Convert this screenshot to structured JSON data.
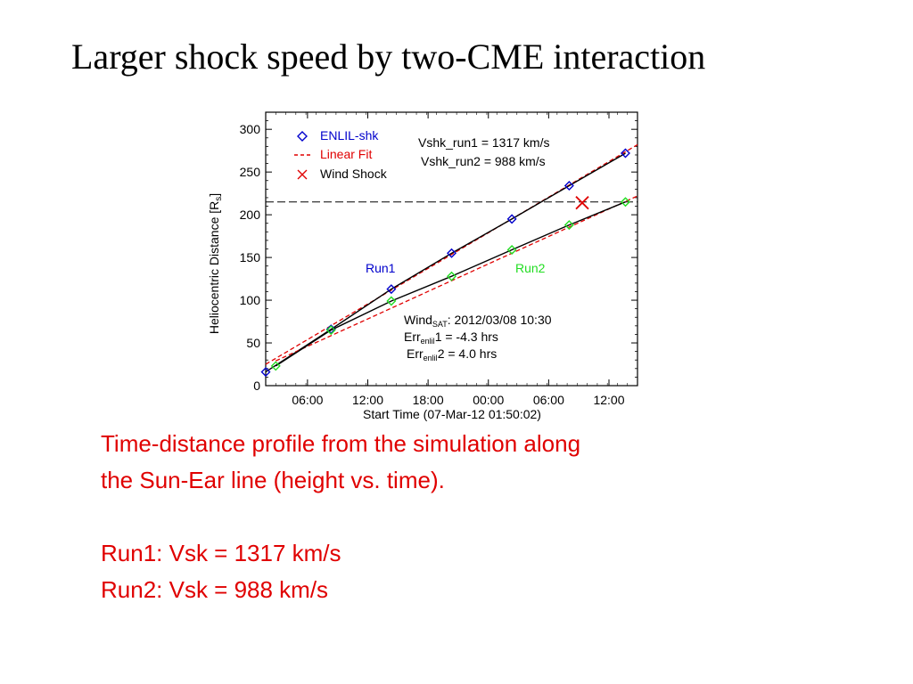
{
  "slide": {
    "title": "Larger shock speed by two-CME interaction",
    "caption_line1": "Time-distance profile from the simulation along",
    "caption_line2": "the Sun-Ear line  (height vs. time).",
    "run1_text": "Run1:  Vsk = 1317 km/s",
    "run2_text": "Run2:  Vsk  = 988 km/s"
  },
  "chart_data": {
    "type": "line",
    "xlabel": "Start Time (07-Mar-12 01:50:02)",
    "ylabel_main": "Heliocentric Distance [R",
    "ylabel_sub": "s",
    "ylabel_end": "]",
    "x_unit": "hours since start",
    "xlim": [
      0,
      37
    ],
    "ylim": [
      0,
      320
    ],
    "x_ticks": [
      {
        "x": 4.16,
        "label": "06:00"
      },
      {
        "x": 10.16,
        "label": "12:00"
      },
      {
        "x": 16.16,
        "label": "18:00"
      },
      {
        "x": 22.16,
        "label": "00:00"
      },
      {
        "x": 28.16,
        "label": "06:00"
      },
      {
        "x": 34.16,
        "label": "12:00"
      }
    ],
    "y_ticks": [
      {
        "y": 0,
        "label": "0"
      },
      {
        "y": 50,
        "label": "50"
      },
      {
        "y": 100,
        "label": "100"
      },
      {
        "y": 150,
        "label": "150"
      },
      {
        "y": 200,
        "label": "200"
      },
      {
        "y": 250,
        "label": "250"
      },
      {
        "y": 300,
        "label": "300"
      }
    ],
    "wind_distance": 215,
    "wind_shock": {
      "x": 31.5,
      "y": 214
    },
    "series": [
      {
        "name": "Run1",
        "color": "#0000cc",
        "points": [
          [
            0,
            16
          ],
          [
            6.5,
            66
          ],
          [
            12.5,
            113
          ],
          [
            18.5,
            155
          ],
          [
            24.5,
            195
          ],
          [
            30.2,
            234
          ],
          [
            35.8,
            272
          ]
        ],
        "fit": [
          [
            0,
            25
          ],
          [
            37,
            282
          ]
        ]
      },
      {
        "name": "Run2",
        "color": "#22dd22",
        "points": [
          [
            1,
            23
          ],
          [
            6.5,
            65
          ],
          [
            12.5,
            99
          ],
          [
            18.5,
            128
          ],
          [
            24.5,
            159
          ],
          [
            30.2,
            188
          ],
          [
            35.8,
            215
          ]
        ],
        "fit": [
          [
            1,
            29
          ],
          [
            37,
            222
          ]
        ]
      }
    ],
    "legend": {
      "position": "top-left",
      "items": [
        {
          "label": "ENLIL-shk",
          "marker": "diamond-icon",
          "color": "#0000cc"
        },
        {
          "label": "Linear Fit",
          "marker": "dashed-line",
          "color": "#e00000"
        },
        {
          "label": "Wind Shock",
          "marker": "cross-icon",
          "color": "#000000"
        }
      ]
    },
    "speed_label_1": "Vshk_run1 =  1317 km/s",
    "speed_label_2": "Vshk_run2 =   988 km/s",
    "wind_label": "Wind",
    "wind_sub": "SAT",
    "wind_value": ": 2012/03/08 10:30",
    "err_prefix": "Err",
    "err_sub": "enlil",
    "err1_value": "1 =  -4.3 hrs",
    "err2_value": "2 =   4.0 hrs",
    "run1_label": "Run1",
    "run2_label": "Run2"
  }
}
